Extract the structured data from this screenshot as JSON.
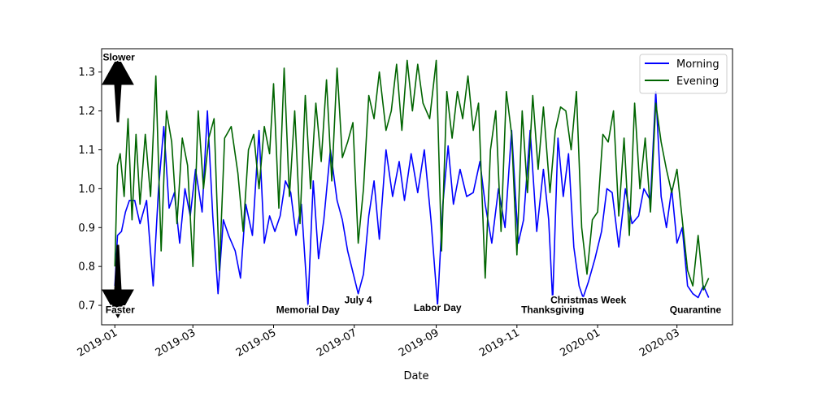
{
  "chart_data": {
    "type": "line",
    "title": "",
    "xlabel": "Date",
    "ylabel": "",
    "xlim": [
      "2018-12-22",
      "2020-04-12"
    ],
    "ylim": [
      0.65,
      1.36
    ],
    "grid": false,
    "legend_position": "top-right",
    "x_ticks": [
      "2019-01",
      "2019-03",
      "2019-05",
      "2019-07",
      "2019-09",
      "2019-11",
      "2020-01",
      "2020-03"
    ],
    "x_tick_dates": [
      "2019-01-01",
      "2019-03-01",
      "2019-05-01",
      "2019-07-01",
      "2019-09-01",
      "2019-11-01",
      "2020-01-01",
      "2020-03-01"
    ],
    "y_ticks": [
      "0.7",
      "0.8",
      "0.9",
      "1.0",
      "1.1",
      "1.2",
      "1.3"
    ],
    "series": [
      {
        "name": "Morning",
        "color": "#0000ff",
        "points": [
          [
            "2019-01-01",
            0.75
          ],
          [
            "2019-01-03",
            0.88
          ],
          [
            "2019-01-06",
            0.89
          ],
          [
            "2019-01-09",
            0.94
          ],
          [
            "2019-01-12",
            0.97
          ],
          [
            "2019-01-16",
            0.97
          ],
          [
            "2019-01-20",
            0.91
          ],
          [
            "2019-01-25",
            0.97
          ],
          [
            "2019-01-30",
            0.75
          ],
          [
            "2019-02-03",
            1.0
          ],
          [
            "2019-02-07",
            1.16
          ],
          [
            "2019-02-11",
            0.95
          ],
          [
            "2019-02-15",
            0.99
          ],
          [
            "2019-02-19",
            0.86
          ],
          [
            "2019-02-23",
            1.0
          ],
          [
            "2019-02-27",
            0.93
          ],
          [
            "2019-03-03",
            1.05
          ],
          [
            "2019-03-08",
            0.94
          ],
          [
            "2019-03-12",
            1.2
          ],
          [
            "2019-03-16",
            0.93
          ],
          [
            "2019-03-20",
            0.73
          ],
          [
            "2019-03-24",
            0.92
          ],
          [
            "2019-03-28",
            0.88
          ],
          [
            "2019-04-02",
            0.84
          ],
          [
            "2019-04-06",
            0.77
          ],
          [
            "2019-04-10",
            0.96
          ],
          [
            "2019-04-15",
            0.88
          ],
          [
            "2019-04-20",
            1.15
          ],
          [
            "2019-04-24",
            0.86
          ],
          [
            "2019-04-28",
            0.93
          ],
          [
            "2019-05-02",
            0.89
          ],
          [
            "2019-05-06",
            0.93
          ],
          [
            "2019-05-10",
            1.02
          ],
          [
            "2019-05-14",
            0.99
          ],
          [
            "2019-05-18",
            0.88
          ],
          [
            "2019-05-22",
            0.96
          ],
          [
            "2019-05-27",
            0.7
          ],
          [
            "2019-05-31",
            1.02
          ],
          [
            "2019-06-04",
            0.82
          ],
          [
            "2019-06-08",
            0.92
          ],
          [
            "2019-06-13",
            1.1
          ],
          [
            "2019-06-18",
            0.97
          ],
          [
            "2019-06-22",
            0.92
          ],
          [
            "2019-06-26",
            0.84
          ],
          [
            "2019-07-04",
            0.73
          ],
          [
            "2019-07-08",
            0.78
          ],
          [
            "2019-07-12",
            0.93
          ],
          [
            "2019-07-16",
            1.02
          ],
          [
            "2019-07-20",
            0.87
          ],
          [
            "2019-07-25",
            1.1
          ],
          [
            "2019-07-30",
            0.98
          ],
          [
            "2019-08-04",
            1.07
          ],
          [
            "2019-08-08",
            0.97
          ],
          [
            "2019-08-13",
            1.09
          ],
          [
            "2019-08-18",
            0.99
          ],
          [
            "2019-08-23",
            1.1
          ],
          [
            "2019-08-28",
            0.92
          ],
          [
            "2019-09-02",
            0.7
          ],
          [
            "2019-09-06",
            0.96
          ],
          [
            "2019-09-10",
            1.11
          ],
          [
            "2019-09-14",
            0.96
          ],
          [
            "2019-09-19",
            1.05
          ],
          [
            "2019-09-24",
            0.98
          ],
          [
            "2019-09-29",
            0.99
          ],
          [
            "2019-10-04",
            1.07
          ],
          [
            "2019-10-08",
            0.96
          ],
          [
            "2019-10-13",
            0.86
          ],
          [
            "2019-10-18",
            1.0
          ],
          [
            "2019-10-23",
            0.9
          ],
          [
            "2019-10-28",
            1.15
          ],
          [
            "2019-11-02",
            0.86
          ],
          [
            "2019-11-06",
            0.92
          ],
          [
            "2019-11-11",
            1.15
          ],
          [
            "2019-11-16",
            0.89
          ],
          [
            "2019-11-21",
            1.05
          ],
          [
            "2019-11-25",
            0.92
          ],
          [
            "2019-11-28",
            0.71
          ],
          [
            "2019-12-02",
            1.13
          ],
          [
            "2019-12-06",
            0.98
          ],
          [
            "2019-12-10",
            1.09
          ],
          [
            "2019-12-14",
            0.85
          ],
          [
            "2019-12-18",
            0.75
          ],
          [
            "2019-12-21",
            0.72
          ],
          [
            "2019-12-25",
            0.76
          ],
          [
            "2019-12-30",
            0.82
          ],
          [
            "2020-01-04",
            0.89
          ],
          [
            "2020-01-08",
            1.0
          ],
          [
            "2020-01-12",
            0.99
          ],
          [
            "2020-01-17",
            0.85
          ],
          [
            "2020-01-22",
            1.0
          ],
          [
            "2020-01-27",
            0.91
          ],
          [
            "2020-02-01",
            0.93
          ],
          [
            "2020-02-05",
            1.0
          ],
          [
            "2020-02-10",
            0.97
          ],
          [
            "2020-02-14",
            1.25
          ],
          [
            "2020-02-18",
            0.98
          ],
          [
            "2020-02-22",
            0.9
          ],
          [
            "2020-02-26",
            1.0
          ],
          [
            "2020-03-01",
            0.86
          ],
          [
            "2020-03-05",
            0.9
          ],
          [
            "2020-03-09",
            0.75
          ],
          [
            "2020-03-13",
            0.73
          ],
          [
            "2020-03-17",
            0.72
          ],
          [
            "2020-03-21",
            0.75
          ],
          [
            "2020-03-25",
            0.72
          ]
        ]
      },
      {
        "name": "Evening",
        "color": "#006400",
        "points": [
          [
            "2019-01-01",
            0.8
          ],
          [
            "2019-01-03",
            1.06
          ],
          [
            "2019-01-05",
            1.09
          ],
          [
            "2019-01-08",
            0.98
          ],
          [
            "2019-01-11",
            1.18
          ],
          [
            "2019-01-14",
            0.92
          ],
          [
            "2019-01-17",
            1.14
          ],
          [
            "2019-01-20",
            0.96
          ],
          [
            "2019-01-24",
            1.14
          ],
          [
            "2019-01-28",
            0.98
          ],
          [
            "2019-02-01",
            1.29
          ],
          [
            "2019-02-05",
            0.84
          ],
          [
            "2019-02-09",
            1.2
          ],
          [
            "2019-02-13",
            1.12
          ],
          [
            "2019-02-17",
            0.91
          ],
          [
            "2019-02-21",
            1.13
          ],
          [
            "2019-02-25",
            1.06
          ],
          [
            "2019-03-01",
            0.8
          ],
          [
            "2019-03-05",
            1.2
          ],
          [
            "2019-03-09",
            1.0
          ],
          [
            "2019-03-13",
            1.13
          ],
          [
            "2019-03-17",
            1.18
          ],
          [
            "2019-03-21",
            0.79
          ],
          [
            "2019-03-25",
            1.13
          ],
          [
            "2019-03-30",
            1.16
          ],
          [
            "2019-04-04",
            1.04
          ],
          [
            "2019-04-08",
            0.89
          ],
          [
            "2019-04-12",
            1.1
          ],
          [
            "2019-04-16",
            1.14
          ],
          [
            "2019-04-20",
            1.0
          ],
          [
            "2019-04-24",
            1.16
          ],
          [
            "2019-04-28",
            1.09
          ],
          [
            "2019-05-01",
            1.27
          ],
          [
            "2019-05-05",
            0.95
          ],
          [
            "2019-05-09",
            1.31
          ],
          [
            "2019-05-13",
            0.98
          ],
          [
            "2019-05-17",
            1.2
          ],
          [
            "2019-05-21",
            0.91
          ],
          [
            "2019-05-25",
            1.24
          ],
          [
            "2019-05-29",
            1.0
          ],
          [
            "2019-06-02",
            1.22
          ],
          [
            "2019-06-06",
            1.07
          ],
          [
            "2019-06-10",
            1.28
          ],
          [
            "2019-06-14",
            1.02
          ],
          [
            "2019-06-18",
            1.31
          ],
          [
            "2019-06-22",
            1.08
          ],
          [
            "2019-06-26",
            1.12
          ],
          [
            "2019-06-30",
            1.17
          ],
          [
            "2019-07-04",
            0.86
          ],
          [
            "2019-07-08",
            1.0
          ],
          [
            "2019-07-12",
            1.24
          ],
          [
            "2019-07-16",
            1.18
          ],
          [
            "2019-07-20",
            1.3
          ],
          [
            "2019-07-25",
            1.15
          ],
          [
            "2019-07-29",
            1.2
          ],
          [
            "2019-08-02",
            1.32
          ],
          [
            "2019-08-06",
            1.15
          ],
          [
            "2019-08-10",
            1.33
          ],
          [
            "2019-08-14",
            1.2
          ],
          [
            "2019-08-18",
            1.32
          ],
          [
            "2019-08-22",
            1.22
          ],
          [
            "2019-08-27",
            1.18
          ],
          [
            "2019-09-01",
            1.33
          ],
          [
            "2019-09-05",
            0.84
          ],
          [
            "2019-09-09",
            1.25
          ],
          [
            "2019-09-13",
            1.13
          ],
          [
            "2019-09-17",
            1.25
          ],
          [
            "2019-09-21",
            1.18
          ],
          [
            "2019-09-25",
            1.29
          ],
          [
            "2019-09-29",
            1.15
          ],
          [
            "2019-10-03",
            1.22
          ],
          [
            "2019-10-08",
            0.77
          ],
          [
            "2019-10-12",
            1.1
          ],
          [
            "2019-10-16",
            1.2
          ],
          [
            "2019-10-20",
            0.89
          ],
          [
            "2019-10-24",
            1.25
          ],
          [
            "2019-10-28",
            1.14
          ],
          [
            "2019-11-01",
            0.83
          ],
          [
            "2019-11-05",
            1.2
          ],
          [
            "2019-11-09",
            0.99
          ],
          [
            "2019-11-13",
            1.24
          ],
          [
            "2019-11-17",
            1.05
          ],
          [
            "2019-11-21",
            1.21
          ],
          [
            "2019-11-26",
            0.99
          ],
          [
            "2019-11-30",
            1.15
          ],
          [
            "2019-12-04",
            1.21
          ],
          [
            "2019-12-08",
            1.2
          ],
          [
            "2019-12-12",
            1.1
          ],
          [
            "2019-12-16",
            1.25
          ],
          [
            "2019-12-20",
            0.9
          ],
          [
            "2019-12-24",
            0.78
          ],
          [
            "2019-12-28",
            0.92
          ],
          [
            "2020-01-01",
            0.94
          ],
          [
            "2020-01-05",
            1.14
          ],
          [
            "2020-01-09",
            1.12
          ],
          [
            "2020-01-13",
            1.2
          ],
          [
            "2020-01-17",
            0.93
          ],
          [
            "2020-01-21",
            1.13
          ],
          [
            "2020-01-25",
            0.88
          ],
          [
            "2020-01-29",
            1.22
          ],
          [
            "2020-02-02",
            1.0
          ],
          [
            "2020-02-06",
            1.13
          ],
          [
            "2020-02-10",
            0.94
          ],
          [
            "2020-02-14",
            1.22
          ],
          [
            "2020-02-18",
            1.12
          ],
          [
            "2020-02-22",
            1.05
          ],
          [
            "2020-02-26",
            0.99
          ],
          [
            "2020-03-01",
            1.05
          ],
          [
            "2020-03-05",
            0.92
          ],
          [
            "2020-03-09",
            0.79
          ],
          [
            "2020-03-13",
            0.75
          ],
          [
            "2020-03-17",
            0.88
          ],
          [
            "2020-03-21",
            0.74
          ],
          [
            "2020-03-25",
            0.77
          ]
        ]
      }
    ],
    "annotations": [
      {
        "text": "Slower",
        "date": "2019-01-04",
        "y": 1.33
      },
      {
        "text": "Faster",
        "date": "2019-01-05",
        "y": 0.68
      },
      {
        "text": "Memorial Day",
        "date": "2019-05-27",
        "y": 0.68
      },
      {
        "text": "July 4",
        "date": "2019-07-04",
        "y": 0.705
      },
      {
        "text": "Labor Day",
        "date": "2019-09-02",
        "y": 0.685
      },
      {
        "text": "Thanksgiving",
        "date": "2019-11-28",
        "y": 0.68
      },
      {
        "text": "Christmas Week",
        "date": "2019-12-25",
        "y": 0.705
      },
      {
        "text": "Quarantine",
        "date": "2020-03-15",
        "y": 0.68
      }
    ],
    "arrows": [
      {
        "name": "slower",
        "direction": "up"
      },
      {
        "name": "faster",
        "direction": "down"
      }
    ]
  }
}
